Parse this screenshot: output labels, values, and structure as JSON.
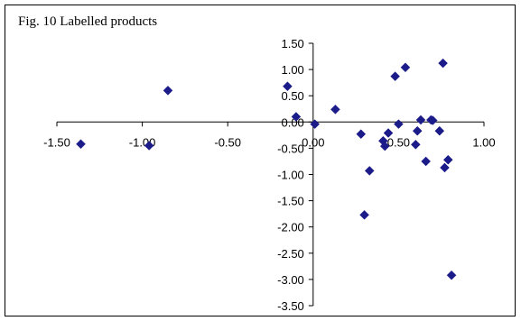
{
  "chart_data": {
    "type": "scatter",
    "title": "Fig. 10 Labelled products",
    "xlabel": "",
    "ylabel": "",
    "xlim": [
      -1.5,
      1.0
    ],
    "ylim": [
      -3.5,
      1.5
    ],
    "x_ticks": [
      "-1.50",
      "-1.00",
      "-0.50",
      "0.00",
      "0.50",
      "1.00"
    ],
    "y_ticks": [
      "1.50",
      "1.00",
      "0.50",
      "0.00",
      "-0.50",
      "-1.00",
      "-1.50",
      "-2.00",
      "-2.50",
      "-3.00",
      "-3.50"
    ],
    "grid": false,
    "marker": "diamond",
    "marker_color": "#1b1b8a",
    "series": [
      {
        "points": [
          {
            "x": -1.36,
            "y": -0.42
          },
          {
            "x": -0.96,
            "y": -0.45
          },
          {
            "x": -0.85,
            "y": 0.6
          },
          {
            "x": -0.15,
            "y": 0.68
          },
          {
            "x": -0.1,
            "y": 0.1
          },
          {
            "x": 0.01,
            "y": -0.04
          },
          {
            "x": 0.13,
            "y": 0.24
          },
          {
            "x": 0.28,
            "y": -0.23
          },
          {
            "x": 0.3,
            "y": -1.77
          },
          {
            "x": 0.33,
            "y": -0.93
          },
          {
            "x": 0.41,
            "y": -0.36
          },
          {
            "x": 0.42,
            "y": -0.46
          },
          {
            "x": 0.44,
            "y": -0.21
          },
          {
            "x": 0.48,
            "y": 0.87
          },
          {
            "x": 0.5,
            "y": -0.04
          },
          {
            "x": 0.54,
            "y": 1.04
          },
          {
            "x": 0.6,
            "y": -0.43
          },
          {
            "x": 0.61,
            "y": -0.17
          },
          {
            "x": 0.63,
            "y": 0.04
          },
          {
            "x": 0.66,
            "y": -0.75
          },
          {
            "x": 0.69,
            "y": 0.04
          },
          {
            "x": 0.7,
            "y": 0.03
          },
          {
            "x": 0.74,
            "y": -0.17
          },
          {
            "x": 0.76,
            "y": 1.12
          },
          {
            "x": 0.77,
            "y": -0.87
          },
          {
            "x": 0.79,
            "y": -0.72
          },
          {
            "x": 0.81,
            "y": -2.92
          }
        ]
      }
    ]
  }
}
